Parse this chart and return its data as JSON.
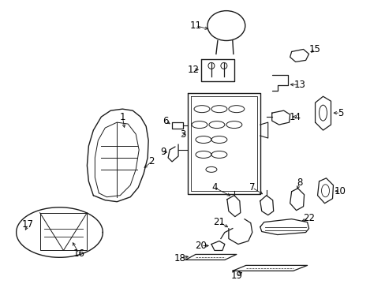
{
  "background_color": "#ffffff",
  "line_color": "#1a1a1a",
  "label_color": "#000000",
  "label_fontsize": 8.5,
  "fig_width": 4.89,
  "fig_height": 3.6,
  "dpi": 100
}
